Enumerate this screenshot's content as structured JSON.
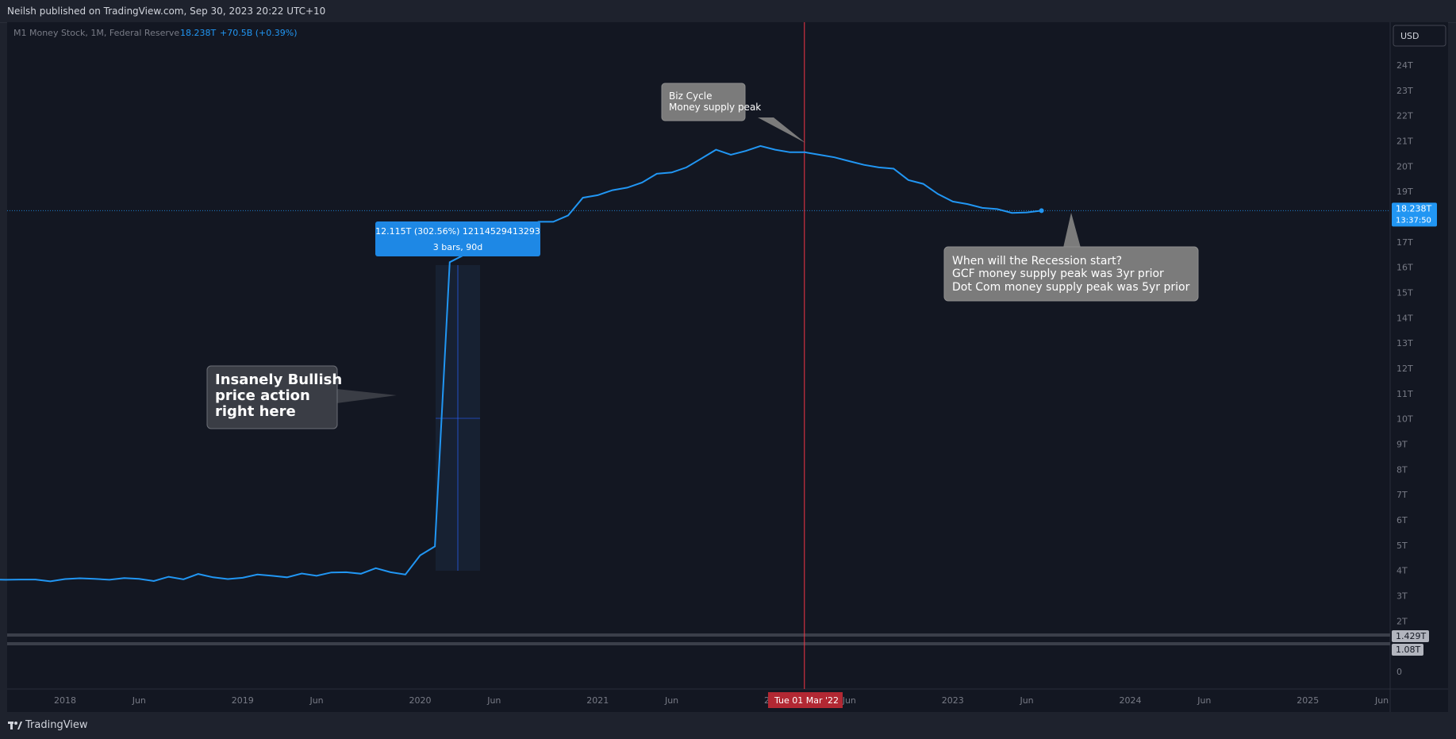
{
  "header": {
    "published": "Neilsh published on TradingView.com, Sep 30, 2023 20:22 UTC+10"
  },
  "legend": {
    "symbol": "M1 Money Stock, 1M, Federal Reserve",
    "value": "18.238T",
    "change": "+70.5B (+0.39%)"
  },
  "currency": "USD",
  "footer": {
    "brand": "TradingView"
  },
  "colors": {
    "line": "#2196f3",
    "background": "#131722",
    "crosshair": "#f23645",
    "callout": "#808080"
  },
  "chart_data": {
    "type": "line",
    "title": "M1 Money Stock, 1M, Federal Reserve",
    "xlabel": "",
    "ylabel": "",
    "ylim": [
      0,
      25
    ],
    "grid": false,
    "legend": "top-left",
    "y_ticks": [
      "0",
      "2T",
      "3T",
      "4T",
      "5T",
      "6T",
      "7T",
      "8T",
      "9T",
      "10T",
      "11T",
      "12T",
      "13T",
      "14T",
      "15T",
      "16T",
      "17T",
      "18T",
      "19T",
      "20T",
      "21T",
      "22T",
      "23T",
      "24T"
    ],
    "x_ticks": [
      {
        "label": "2018",
        "t": 2018.0
      },
      {
        "label": "Jun",
        "t": 2018.417
      },
      {
        "label": "2019",
        "t": 2019.0
      },
      {
        "label": "Jun",
        "t": 2019.417
      },
      {
        "label": "2020",
        "t": 2020.0
      },
      {
        "label": "Jun",
        "t": 2020.417
      },
      {
        "label": "2021",
        "t": 2021.0
      },
      {
        "label": "Jun",
        "t": 2021.417
      },
      {
        "label": "2022",
        "t": 2022.0
      },
      {
        "label": "Jun",
        "t": 2022.417
      },
      {
        "label": "2023",
        "t": 2023.0
      },
      {
        "label": "Jun",
        "t": 2023.417
      },
      {
        "label": "2024",
        "t": 2024.0
      },
      {
        "label": "Jun",
        "t": 2024.417
      },
      {
        "label": "2025",
        "t": 2025.0
      },
      {
        "label": "Jun",
        "t": 2025.417
      }
    ],
    "series": [
      {
        "values": [
          [
            "2017-07",
            3.58
          ],
          [
            "2017-08",
            3.64
          ],
          [
            "2017-09",
            3.63
          ],
          [
            "2017-10",
            3.64
          ],
          [
            "2017-11",
            3.64
          ],
          [
            "2017-12",
            3.57
          ],
          [
            "2018-01",
            3.66
          ],
          [
            "2018-02",
            3.69
          ],
          [
            "2018-03",
            3.67
          ],
          [
            "2018-04",
            3.63
          ],
          [
            "2018-05",
            3.7
          ],
          [
            "2018-06",
            3.67
          ],
          [
            "2018-07",
            3.58
          ],
          [
            "2018-08",
            3.75
          ],
          [
            "2018-09",
            3.65
          ],
          [
            "2018-10",
            3.86
          ],
          [
            "2018-11",
            3.73
          ],
          [
            "2018-12",
            3.66
          ],
          [
            "2019-01",
            3.71
          ],
          [
            "2019-02",
            3.84
          ],
          [
            "2019-03",
            3.79
          ],
          [
            "2019-04",
            3.73
          ],
          [
            "2019-05",
            3.88
          ],
          [
            "2019-06",
            3.79
          ],
          [
            "2019-07",
            3.92
          ],
          [
            "2019-08",
            3.93
          ],
          [
            "2019-09",
            3.87
          ],
          [
            "2019-10",
            4.09
          ],
          [
            "2019-11",
            3.93
          ],
          [
            "2019-12",
            3.84
          ],
          [
            "2020-01",
            4.6
          ],
          [
            "2020-02",
            4.95
          ],
          [
            "2020-03",
            16.2
          ],
          [
            "2020-04",
            16.5
          ],
          [
            "2020-05",
            16.6
          ],
          [
            "2020-06",
            16.9
          ],
          [
            "2020-07",
            17.0
          ],
          [
            "2020-08",
            17.5
          ],
          [
            "2020-09",
            17.8
          ],
          [
            "2020-10",
            17.8
          ],
          [
            "2020-11",
            18.05
          ],
          [
            "2020-12",
            18.75
          ],
          [
            "2021-01",
            18.85
          ],
          [
            "2021-02",
            19.05
          ],
          [
            "2021-03",
            19.15
          ],
          [
            "2021-04",
            19.35
          ],
          [
            "2021-05",
            19.7
          ],
          [
            "2021-06",
            19.75
          ],
          [
            "2021-07",
            19.95
          ],
          [
            "2021-08",
            20.3
          ],
          [
            "2021-09",
            20.65
          ],
          [
            "2021-10",
            20.45
          ],
          [
            "2021-11",
            20.6
          ],
          [
            "2021-12",
            20.8
          ],
          [
            "2022-01",
            20.65
          ],
          [
            "2022-02",
            20.55
          ],
          [
            "2022-03",
            20.55
          ],
          [
            "2022-04",
            20.45
          ],
          [
            "2022-05",
            20.35
          ],
          [
            "2022-06",
            20.2
          ],
          [
            "2022-07",
            20.05
          ],
          [
            "2022-08",
            19.95
          ],
          [
            "2022-09",
            19.9
          ],
          [
            "2022-10",
            19.45
          ],
          [
            "2022-11",
            19.3
          ],
          [
            "2022-12",
            18.9
          ],
          [
            "2023-01",
            18.6
          ],
          [
            "2023-02",
            18.5
          ],
          [
            "2023-03",
            18.35
          ],
          [
            "2023-04",
            18.3
          ],
          [
            "2023-05",
            18.15
          ],
          [
            "2023-06",
            18.17
          ],
          [
            "2023-07",
            18.238
          ]
        ]
      }
    ],
    "last_value_label": "18.238T",
    "last_value_countdown": "13:37:50",
    "extra_price_labels": [
      {
        "value": "1.429T",
        "y": "1.429"
      },
      {
        "value": "1.08T",
        "y": "1.08"
      }
    ],
    "crosshair_date": "Tue 01 Mar '22",
    "measure": {
      "line1": "12.115T (302.56%) 12114529413293",
      "line2": "3 bars, 90d"
    },
    "annotations": [
      {
        "lines": [
          "Biz Cycle",
          "Money supply peak"
        ]
      },
      {
        "lines": [
          "When will the Recession start?",
          "GCF money supply peak was 3yr prior",
          "Dot Com money supply peak was 5yr prior"
        ]
      },
      {
        "lines": [
          "Insanely Bullish",
          "price action",
          "right here"
        ]
      }
    ]
  }
}
